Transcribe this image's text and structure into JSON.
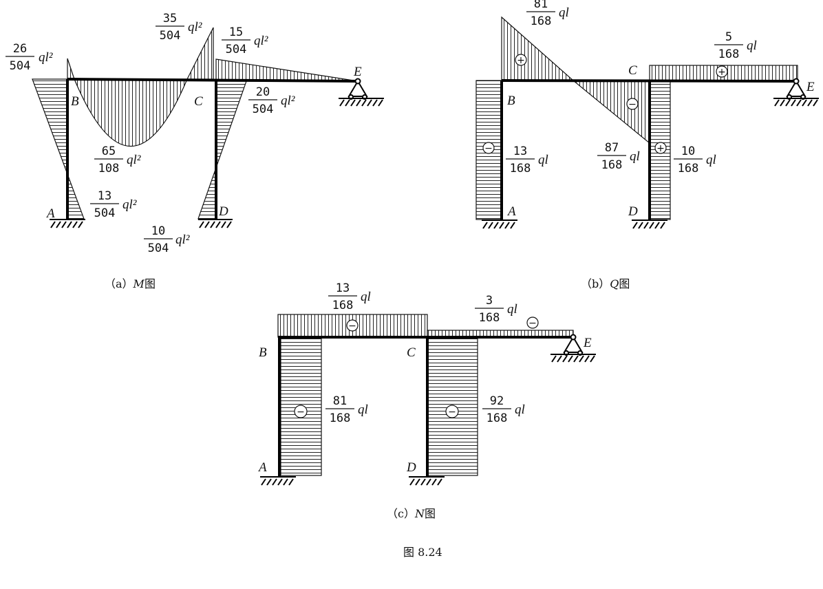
{
  "diagrams": {
    "a": {
      "caption_prefix": "（a）",
      "caption_symbol": "M",
      "caption_suffix": "图",
      "points": {
        "A": "A",
        "B": "B",
        "C": "C",
        "D": "D",
        "E": "E"
      },
      "values": [
        {
          "num": "26",
          "den": "504",
          "unit": "ql²"
        },
        {
          "num": "35",
          "den": "504",
          "unit": "ql²"
        },
        {
          "num": "15",
          "den": "504",
          "unit": "ql²"
        },
        {
          "num": "20",
          "den": "504",
          "unit": "ql²"
        },
        {
          "num": "65",
          "den": "108",
          "unit": "ql²"
        },
        {
          "num": "13",
          "den": "504",
          "unit": "ql²"
        },
        {
          "num": "10",
          "den": "504",
          "unit": "ql²"
        }
      ]
    },
    "b": {
      "caption_prefix": "（b）",
      "caption_symbol": "Q",
      "caption_suffix": "图",
      "points": {
        "A": "A",
        "B": "B",
        "C": "C",
        "D": "D",
        "E": "E"
      },
      "values": [
        {
          "num": "81",
          "den": "168",
          "unit": "ql"
        },
        {
          "num": "5",
          "den": "168",
          "unit": "ql"
        },
        {
          "num": "13",
          "den": "168",
          "unit": "ql"
        },
        {
          "num": "87",
          "den": "168",
          "unit": "ql"
        },
        {
          "num": "10",
          "den": "168",
          "unit": "ql"
        }
      ],
      "signs": [
        "+",
        "+",
        "−",
        "−",
        "+"
      ]
    },
    "c": {
      "caption_prefix": "（c）",
      "caption_symbol": "N",
      "caption_suffix": "图",
      "points": {
        "A": "A",
        "B": "B",
        "C": "C",
        "D": "D",
        "E": "E"
      },
      "values": [
        {
          "num": "13",
          "den": "168",
          "unit": "ql"
        },
        {
          "num": "3",
          "den": "168",
          "unit": "ql"
        },
        {
          "num": "81",
          "den": "168",
          "unit": "ql"
        },
        {
          "num": "92",
          "den": "168",
          "unit": "ql"
        }
      ],
      "signs": [
        "−",
        "−",
        "−",
        "−"
      ]
    }
  },
  "figure_caption": "图 8.24"
}
